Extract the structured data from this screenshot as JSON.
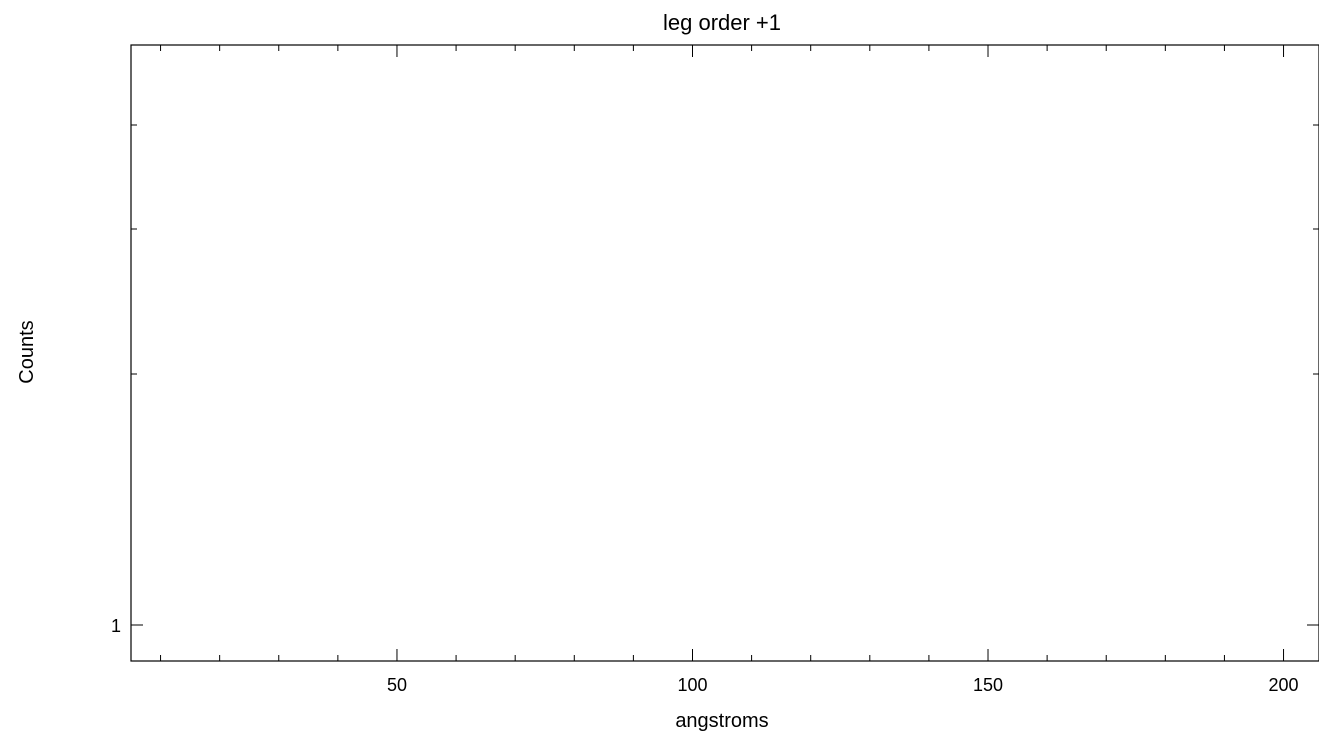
{
  "chart_data": {
    "type": "line",
    "title": "leg order +1",
    "xlabel": "angstroms",
    "ylabel": "Counts",
    "xlim": [
      5,
      206
    ],
    "x_ticks": [
      50,
      100,
      150,
      200
    ],
    "x_minor_step": 10,
    "y_scale": "log",
    "y_ticks": [
      1
    ],
    "series": [],
    "grid": false,
    "legend": "none",
    "colors": {
      "axes": "#000000",
      "background": "#ffffff"
    }
  }
}
